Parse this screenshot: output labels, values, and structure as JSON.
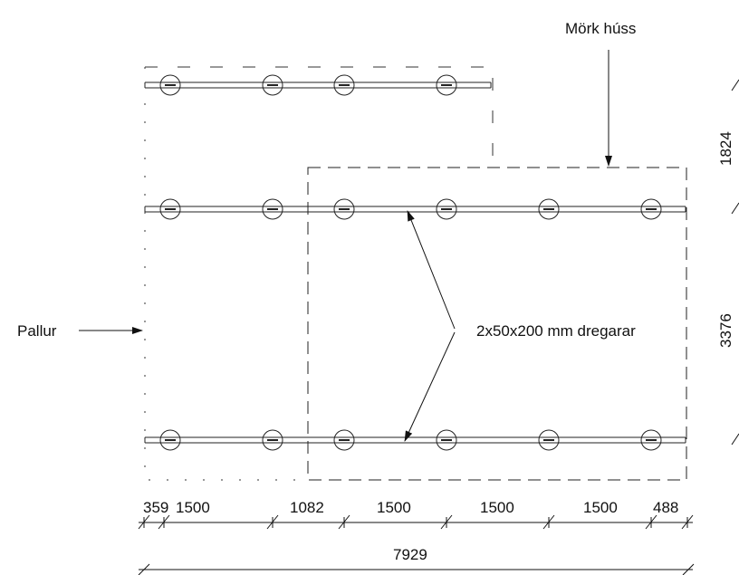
{
  "labels": {
    "mork_huss": "Mörk húss",
    "pallur": "Pallur",
    "dregarar": "2x50x200 mm dregarar"
  },
  "dimensions": {
    "bottom_segments": [
      "359",
      "1500",
      "1082",
      "1500",
      "1500",
      "1500",
      "488"
    ],
    "overall": "7929",
    "right_upper": "1824",
    "right_lower": "3376"
  }
}
